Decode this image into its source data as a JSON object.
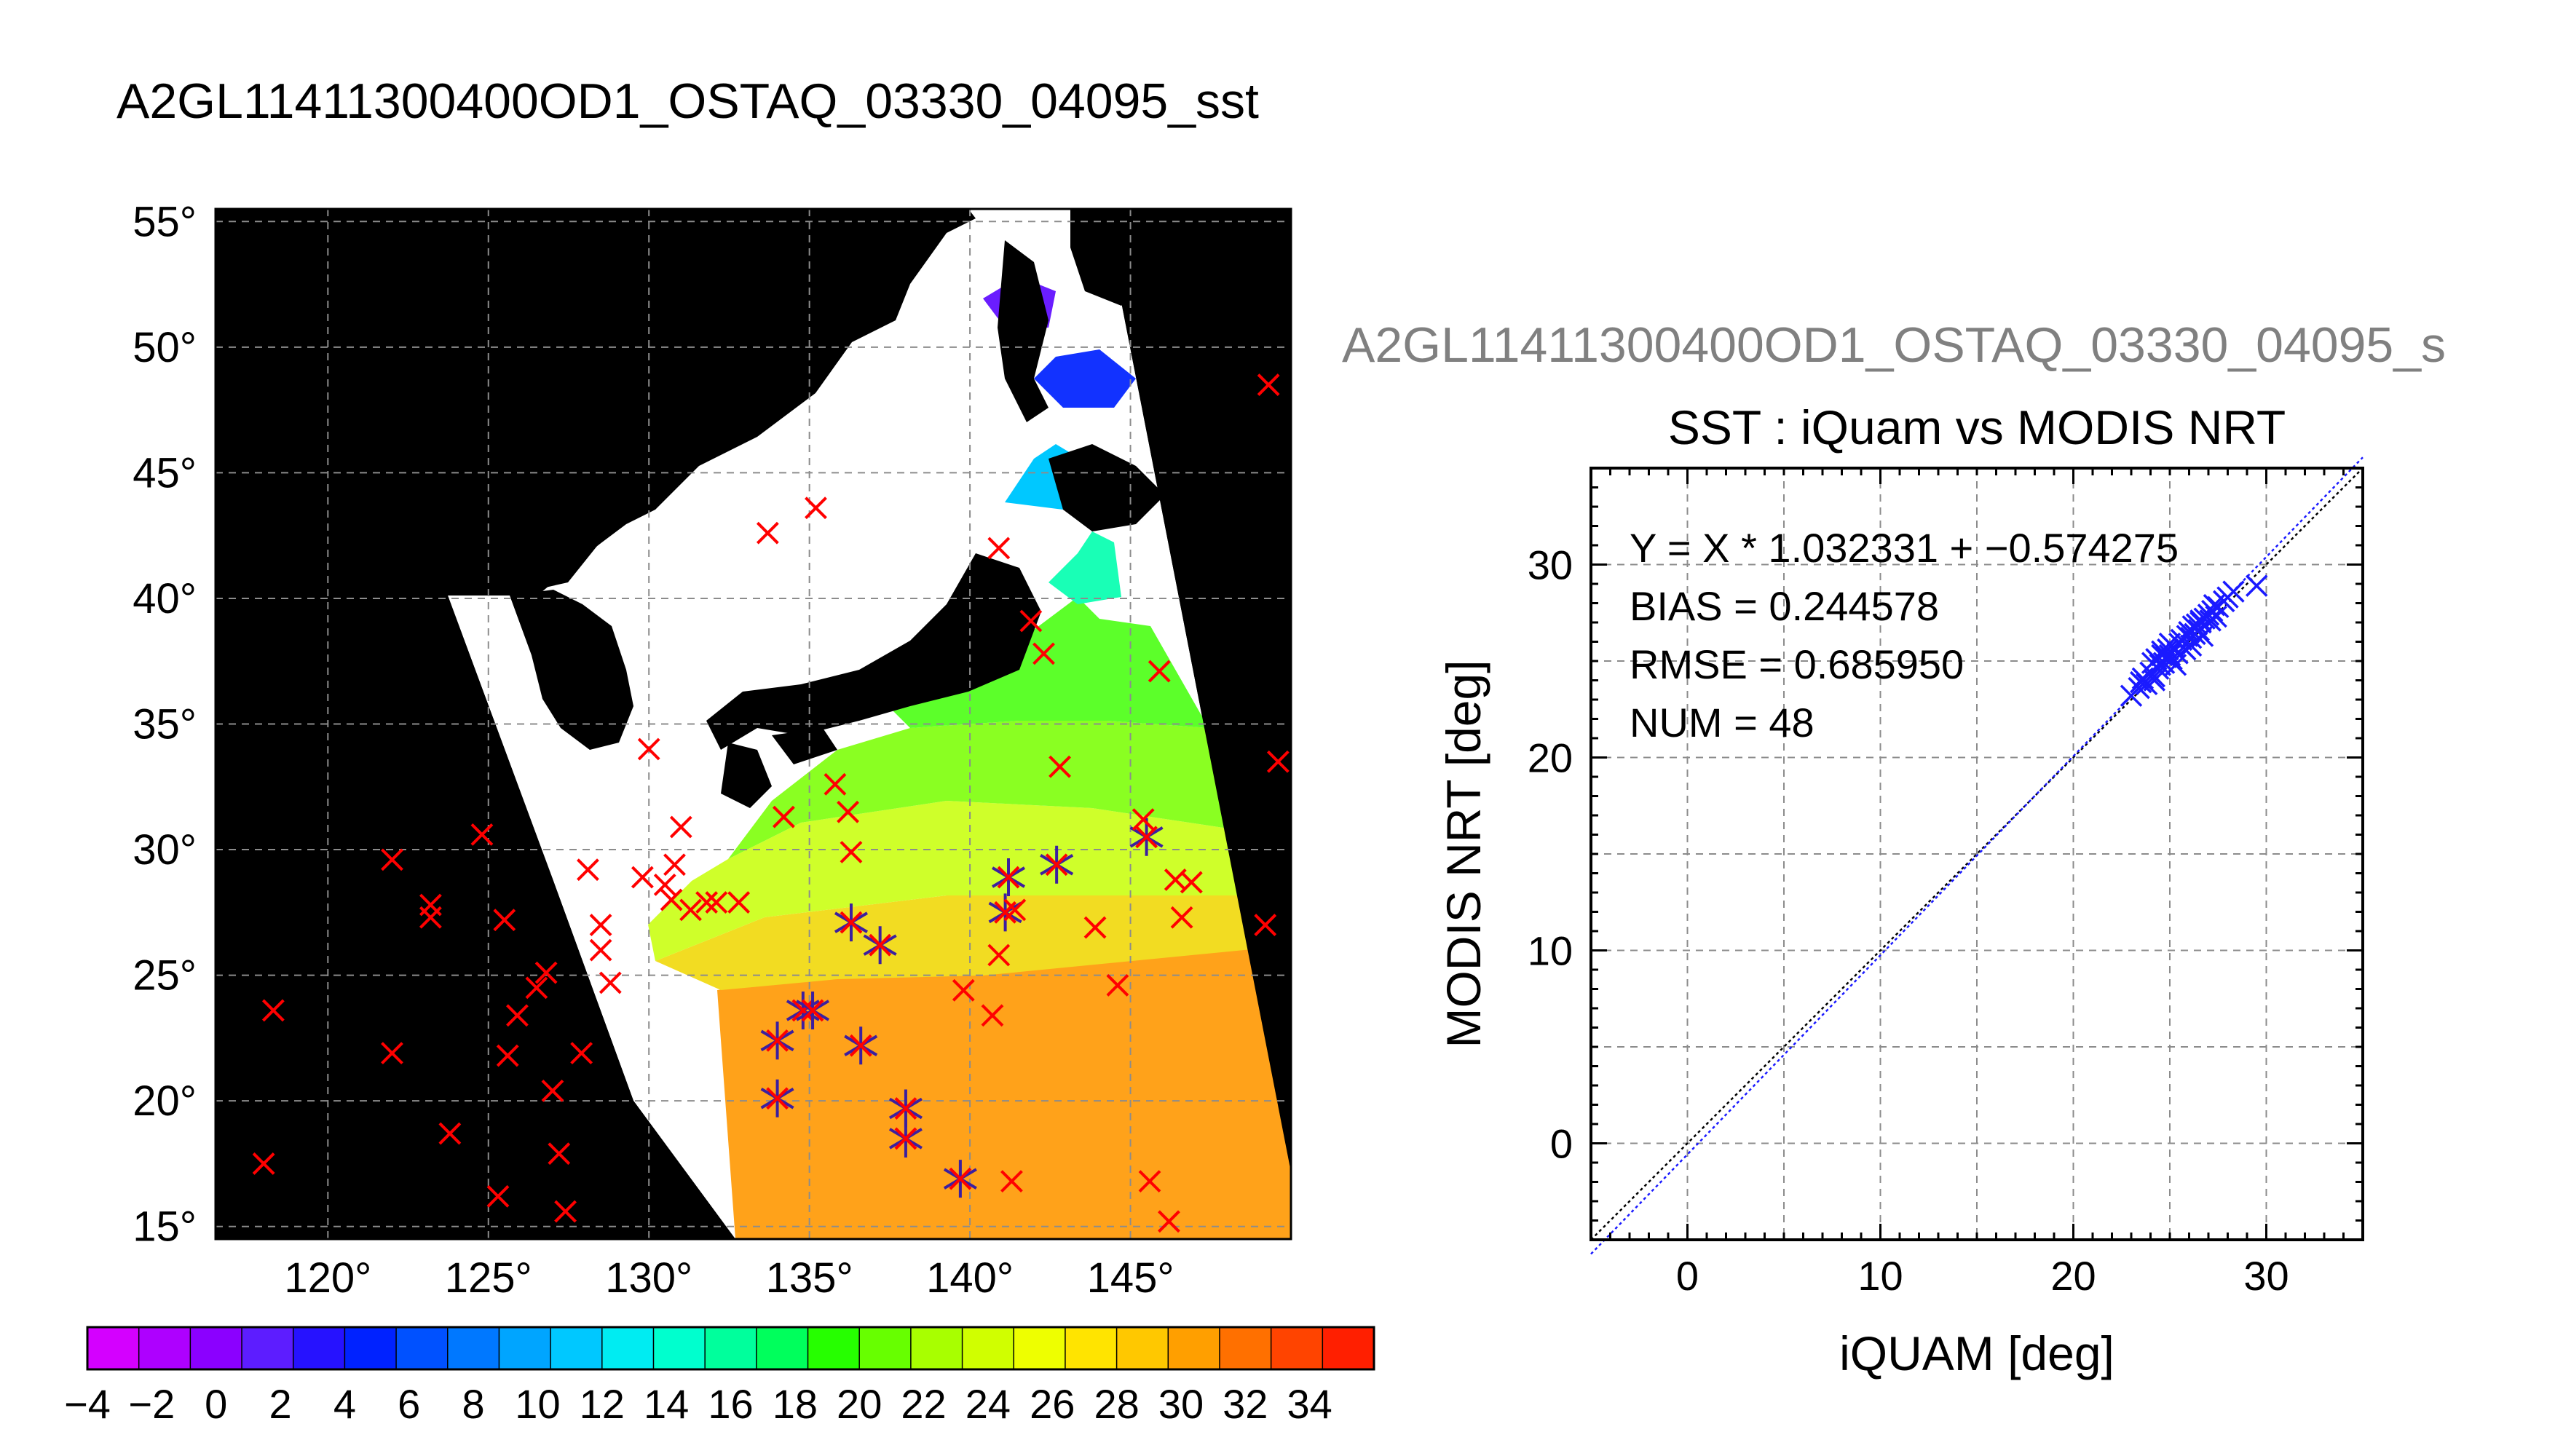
{
  "main_title": "A2GL11411300400OD1_OSTAQ_03330_04095_sst",
  "map": {
    "lon_range": [
      116.5,
      150
    ],
    "lat_range": [
      14.5,
      55.5
    ],
    "lat_ticks": [
      55,
      50,
      45,
      40,
      35,
      30,
      25,
      20,
      15
    ],
    "lon_ticks": [
      120,
      125,
      130,
      135,
      140,
      145
    ],
    "degree_symbol": "°",
    "colors": {
      "background": "#000000",
      "land": "#ffffff",
      "marker_iquam": "#ff0000",
      "marker_match": "#3b1fa0"
    },
    "iquam_points": [
      [
        118.3,
        23.6
      ],
      [
        118,
        17.5
      ],
      [
        122,
        29.6
      ],
      [
        122,
        21.9
      ],
      [
        123.2,
        27.8
      ],
      [
        123.2,
        27.3
      ],
      [
        123.8,
        18.7
      ],
      [
        124.8,
        30.6
      ],
      [
        125.3,
        16.2
      ],
      [
        125.5,
        27.2
      ],
      [
        125.6,
        21.8
      ],
      [
        125.9,
        23.4
      ],
      [
        126.5,
        24.5
      ],
      [
        126.8,
        25.1
      ],
      [
        127,
        20.4
      ],
      [
        127.2,
        17.9
      ],
      [
        127.4,
        15.6
      ],
      [
        127.9,
        21.9
      ],
      [
        128.1,
        29.2
      ],
      [
        128.5,
        26
      ],
      [
        128.5,
        27
      ],
      [
        128.8,
        24.7
      ],
      [
        129.8,
        28.9
      ],
      [
        130,
        34
      ],
      [
        130.5,
        28.6
      ],
      [
        130.7,
        28
      ],
      [
        130.8,
        29.4
      ],
      [
        131,
        30.9
      ],
      [
        131.3,
        27.6
      ],
      [
        131.8,
        27.9
      ],
      [
        132.1,
        27.9
      ],
      [
        132.8,
        27.9
      ],
      [
        133.7,
        42.6
      ],
      [
        134.2,
        31.3
      ],
      [
        135.2,
        43.6
      ],
      [
        135.8,
        32.6
      ],
      [
        136.2,
        31.5
      ],
      [
        136.3,
        29.9
      ],
      [
        139.8,
        24.4
      ],
      [
        140.7,
        23.4
      ],
      [
        140.9,
        25.8
      ],
      [
        140.9,
        42
      ],
      [
        141.3,
        16.8
      ],
      [
        141.4,
        27.6
      ],
      [
        141.9,
        39.1
      ],
      [
        142.3,
        37.8
      ],
      [
        142.8,
        33.3
      ],
      [
        143.9,
        26.9
      ],
      [
        144.6,
        24.6
      ],
      [
        145.4,
        31.2
      ],
      [
        145.6,
        16.8
      ],
      [
        145.9,
        37.1
      ],
      [
        146.2,
        15.2
      ],
      [
        146.4,
        28.8
      ],
      [
        146.6,
        27.3
      ],
      [
        146.9,
        28.7
      ],
      [
        149.3,
        48.5
      ],
      [
        149.2,
        27
      ],
      [
        149.6,
        33.5
      ]
    ],
    "match_points": [
      [
        134,
        20.1
      ],
      [
        134,
        22.4
      ],
      [
        134.8,
        23.6
      ],
      [
        135.1,
        23.6
      ],
      [
        136.3,
        27.1
      ],
      [
        136.6,
        22.2
      ],
      [
        137.2,
        26.2
      ],
      [
        138,
        19.7
      ],
      [
        138,
        18.5
      ],
      [
        139.7,
        16.9
      ],
      [
        141.2,
        28.9
      ],
      [
        141.1,
        27.5
      ],
      [
        142.7,
        29.4
      ],
      [
        145.5,
        30.5
      ]
    ]
  },
  "colorbar": {
    "tick_labels": [
      "−4",
      "−2",
      "0",
      "2",
      "4",
      "6",
      "8",
      "10",
      "12",
      "14",
      "16",
      "18",
      "20",
      "22",
      "24",
      "26",
      "28",
      "30",
      "32",
      "34"
    ],
    "range": [
      -4,
      36
    ],
    "colors": [
      "#d400ff",
      "#ae00ff",
      "#8b00ff",
      "#5d1dff",
      "#2612ff",
      "#0022ff",
      "#0051ff",
      "#0078ff",
      "#00a5ff",
      "#00c8ff",
      "#00ecf2",
      "#00ffce",
      "#00ff9c",
      "#00ff5c",
      "#26ff00",
      "#67ff00",
      "#a8ff00",
      "#d0ff00",
      "#eeff00",
      "#ffe400",
      "#ffc800",
      "#ff9f00",
      "#ff7000",
      "#ff4400",
      "#ff1f00"
    ]
  },
  "scatter_overlay_title": "A2GL11411300400OD1_OSTAQ_03330_04095_s",
  "chart_data": {
    "type": "scatter",
    "title": "SST : iQuam vs MODIS NRT",
    "xlabel": "iQUAM [deg]",
    "ylabel": "MODIS NRT [deg]",
    "xlim": [
      -5,
      35
    ],
    "ylim": [
      -5,
      35
    ],
    "x_ticks": [
      0,
      10,
      20,
      30
    ],
    "y_ticks": [
      0,
      10,
      20,
      30
    ],
    "grid": true,
    "stats": [
      "Y = X * 1.032331 + −0.574275",
      "BIAS = 0.244578",
      "RMSE = 0.685950",
      "NUM = 48"
    ],
    "fit": {
      "slope": 1.032331,
      "intercept": -0.574275
    },
    "series": [
      {
        "marker": "x",
        "color": "#1a1aff",
        "x": [
          23,
          23.4,
          23.6,
          23.8,
          24,
          24.1,
          24.2,
          24.3,
          24.4,
          24.5,
          24.6,
          24.7,
          24.8,
          24.9,
          25,
          25.1,
          25.2,
          25.4,
          25.5,
          25.6,
          25.8,
          25.9,
          26,
          26.1,
          26.2,
          26.3,
          26.4,
          26.5,
          26.6,
          26.7,
          26.8,
          27,
          27.1,
          27.2,
          27.4,
          27.5,
          27.8,
          28,
          29.5,
          23.5,
          24.2,
          24.6,
          25,
          25.3,
          26.1,
          26.6,
          27.3,
          28.3
        ],
        "y": [
          23.2,
          23.6,
          24.1,
          23.8,
          24.4,
          24.9,
          24.2,
          25.1,
          24.6,
          24.8,
          25.3,
          24.9,
          25.2,
          25.6,
          25.3,
          25.1,
          25.7,
          25.4,
          25.9,
          26.1,
          25.6,
          26.3,
          26.5,
          26.2,
          26.8,
          26.4,
          26.9,
          26.6,
          27,
          26.3,
          27.2,
          27.4,
          27.1,
          27.6,
          27.3,
          27.8,
          28.1,
          28.3,
          28.9,
          23.9,
          24,
          25.5,
          25.9,
          24.8,
          25.8,
          27.1,
          27.9,
          28.6
        ]
      }
    ]
  }
}
